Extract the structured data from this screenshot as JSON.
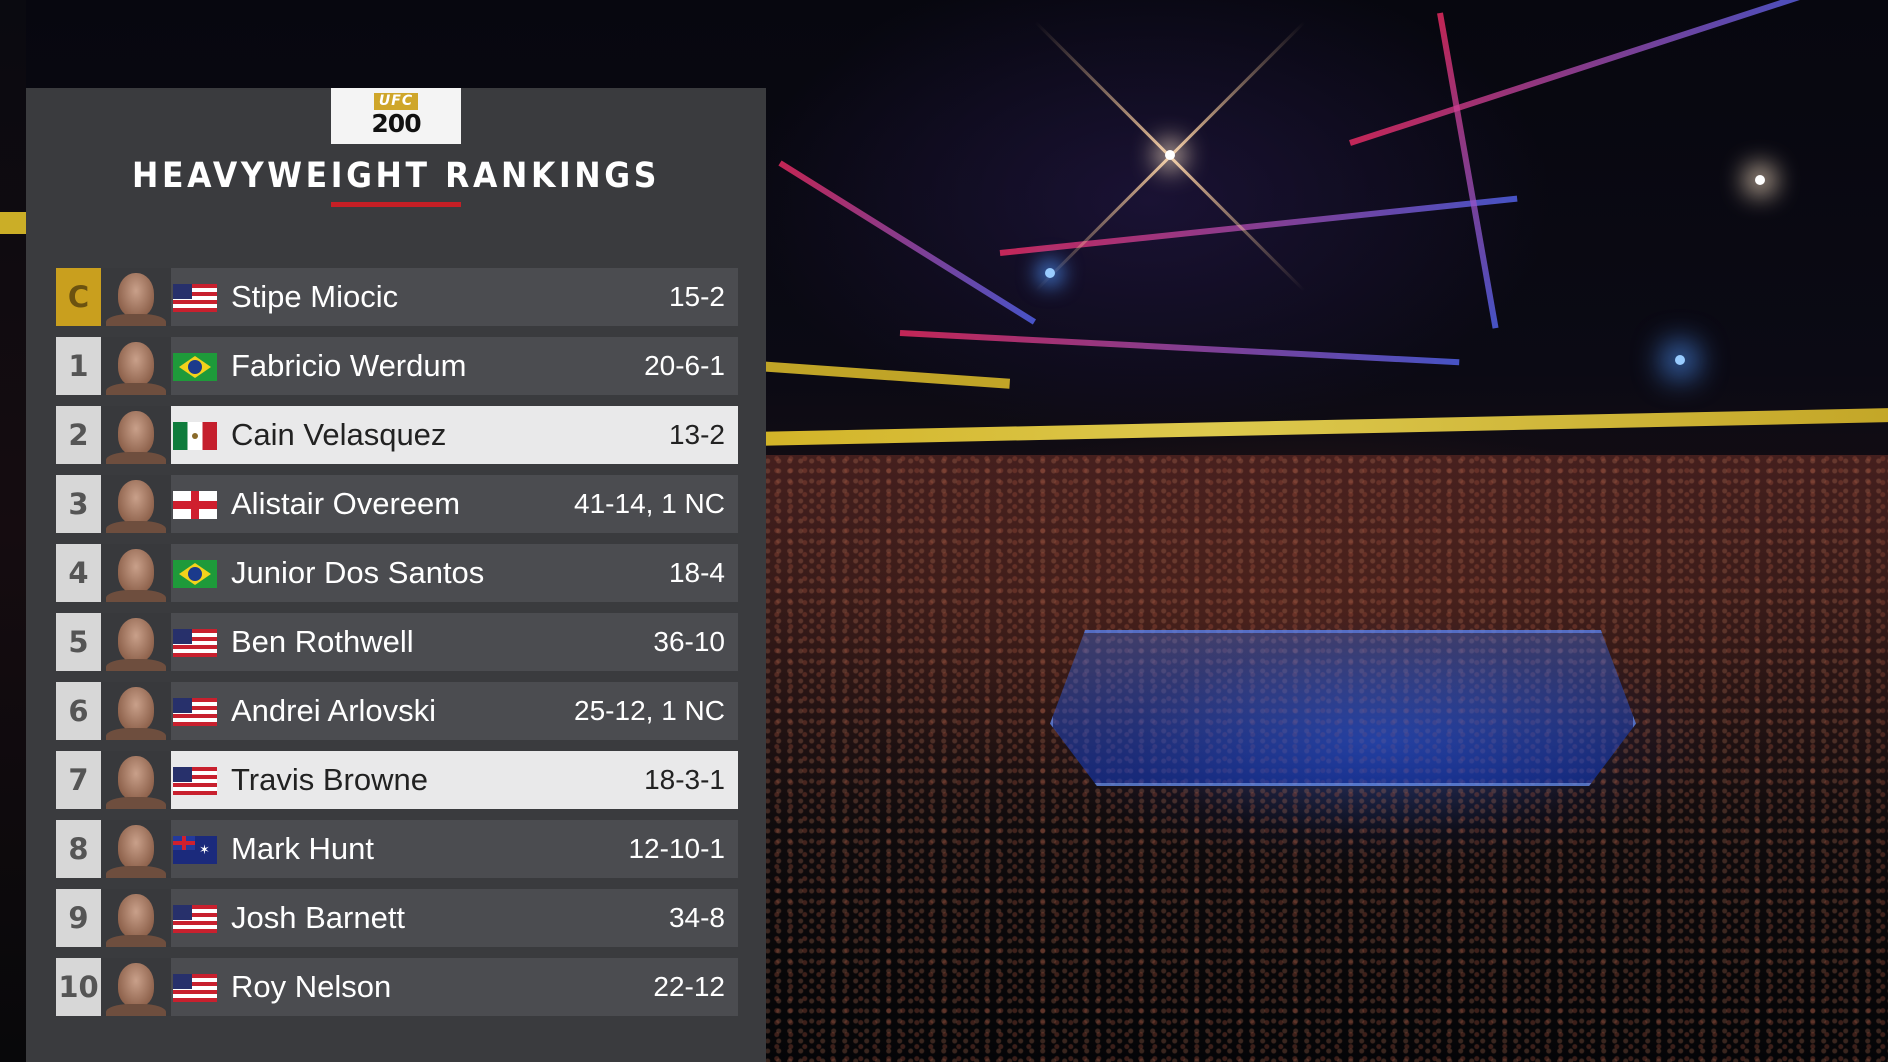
{
  "logo": {
    "brand": "UFC",
    "event_number": "200"
  },
  "title": "HEAVYWEIGHT RANKINGS",
  "colors": {
    "panel": "#3a3b3e",
    "row": "#4b4c50",
    "highlight": "#e9e9ea",
    "champion": "#c99f1e",
    "accent_red": "#c51f25"
  },
  "rankings": [
    {
      "rank": "C",
      "name": "Stipe Miocic",
      "record": "15-2",
      "flag": "flag-us-icon",
      "highlighted": false,
      "champion": true
    },
    {
      "rank": "1",
      "name": "Fabricio Werdum",
      "record": "20-6-1",
      "flag": "flag-br-icon",
      "highlighted": false
    },
    {
      "rank": "2",
      "name": "Cain Velasquez",
      "record": "13-2",
      "flag": "flag-mx-icon",
      "highlighted": true
    },
    {
      "rank": "3",
      "name": "Alistair Overeem",
      "record": "41-14, 1 NC",
      "flag": "flag-en-icon",
      "highlighted": false
    },
    {
      "rank": "4",
      "name": "Junior Dos Santos",
      "record": "18-4",
      "flag": "flag-br-icon",
      "highlighted": false
    },
    {
      "rank": "5",
      "name": "Ben Rothwell",
      "record": "36-10",
      "flag": "flag-us-icon",
      "highlighted": false
    },
    {
      "rank": "6",
      "name": "Andrei Arlovski",
      "record": "25-12, 1 NC",
      "flag": "flag-us-icon",
      "highlighted": false
    },
    {
      "rank": "7",
      "name": "Travis Browne",
      "record": "18-3-1",
      "flag": "flag-us-icon",
      "highlighted": true
    },
    {
      "rank": "8",
      "name": "Mark Hunt",
      "record": "12-10-1",
      "flag": "flag-au-icon",
      "highlighted": false
    },
    {
      "rank": "9",
      "name": "Josh Barnett",
      "record": "34-8",
      "flag": "flag-us-icon",
      "highlighted": false
    },
    {
      "rank": "10",
      "name": "Roy Nelson",
      "record": "22-12",
      "flag": "flag-us-icon",
      "highlighted": false
    }
  ]
}
